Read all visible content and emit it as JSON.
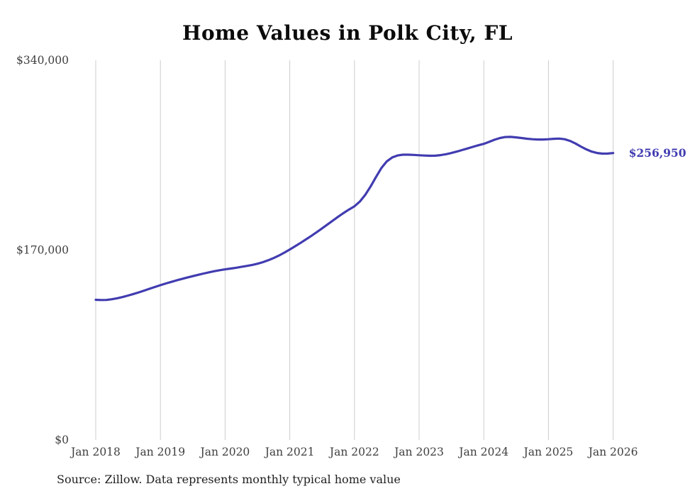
{
  "page": {
    "background": "#ffffff"
  },
  "chart_data": {
    "type": "line",
    "title": "Home Values in Polk City, FL",
    "source_note": "Source: Zillow. Data represents monthly typical home value",
    "xlabel": "",
    "ylabel": "",
    "ylim": [
      0,
      340000
    ],
    "xlim_years": [
      2018,
      2026
    ],
    "grid": "vertical-only",
    "legend": "none",
    "colors": {
      "line": "#413cb0",
      "end_label": "#413cb0",
      "gridline": "#cccccc",
      "axis_text": "#3f3f3f",
      "title_text": "#0b0b0b",
      "source_text": "#1f1f1f",
      "background": "#ffffff"
    },
    "y_ticks": [
      {
        "value": 0,
        "label": "$0"
      },
      {
        "value": 170000,
        "label": "$170,000"
      },
      {
        "value": 340000,
        "label": "$340,000"
      }
    ],
    "x_ticks": [
      {
        "year": 2018,
        "label": "Jan 2018"
      },
      {
        "year": 2019,
        "label": "Jan 2019"
      },
      {
        "year": 2020,
        "label": "Jan 2020"
      },
      {
        "year": 2021,
        "label": "Jan 2021"
      },
      {
        "year": 2022,
        "label": "Jan 2022"
      },
      {
        "year": 2023,
        "label": "Jan 2023"
      },
      {
        "year": 2024,
        "label": "Jan 2024"
      },
      {
        "year": 2025,
        "label": "Jan 2025"
      },
      {
        "year": 2026,
        "label": "Jan 2026"
      }
    ],
    "series": [
      {
        "name": "Typical home value (monthly)",
        "start": "2018-01",
        "frequency": "monthly",
        "values": [
          125500,
          125300,
          125400,
          126000,
          126900,
          128000,
          129300,
          130700,
          132200,
          133800,
          135400,
          137000,
          138600,
          140100,
          141500,
          142900,
          144200,
          145500,
          146700,
          147900,
          149000,
          150100,
          151100,
          152000,
          152800,
          153500,
          154200,
          155000,
          155800,
          156700,
          157800,
          159200,
          160900,
          162900,
          165200,
          167800,
          170600,
          173500,
          176500,
          179600,
          182800,
          186100,
          189500,
          193000,
          196500,
          200000,
          203300,
          206400,
          209300,
          213500,
          219500,
          227000,
          235500,
          243500,
          249500,
          253000,
          254800,
          255500,
          255500,
          255300,
          255000,
          254700,
          254500,
          254600,
          255100,
          255900,
          257000,
          258300,
          259700,
          261100,
          262500,
          263900,
          265200,
          267000,
          268900,
          270400,
          271300,
          271400,
          271000,
          270400,
          269800,
          269300,
          269100,
          269100,
          269300,
          269700,
          269900,
          269300,
          267800,
          265500,
          262800,
          260300,
          258300,
          257000,
          256400,
          256500,
          256950
        ]
      }
    ],
    "end_label": "$256,950",
    "end_value": 256950
  }
}
